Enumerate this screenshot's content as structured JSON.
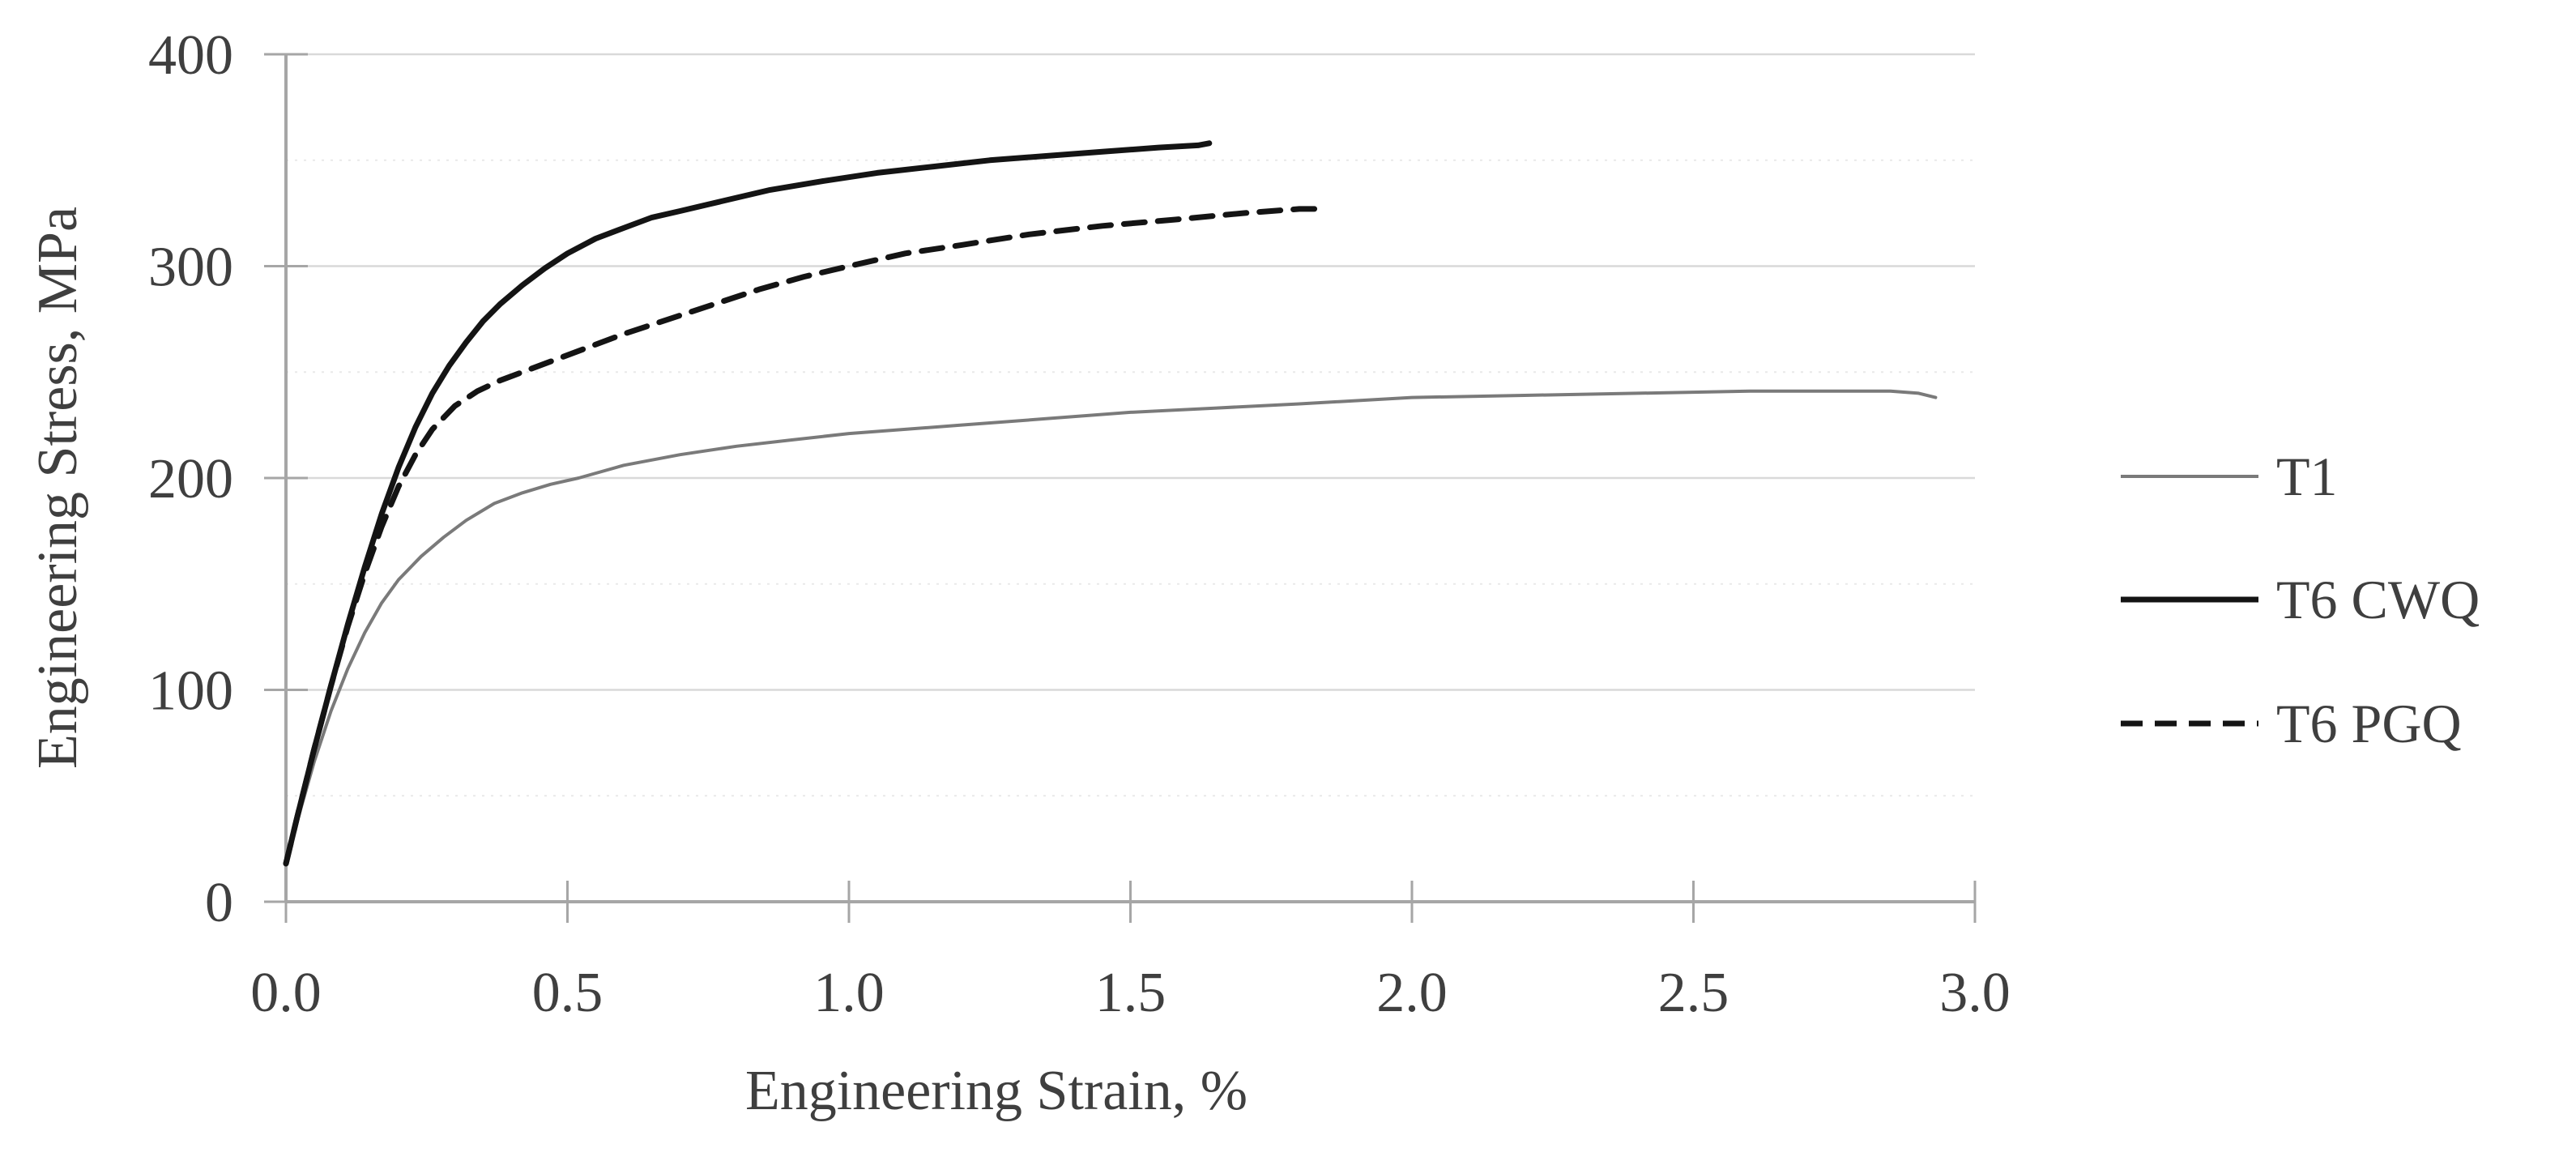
{
  "figure": {
    "background": "#ffffff",
    "text_color": "#3f3f3f",
    "axis_color": "#a6a6a6",
    "major_grid_color": "#d9d9d9",
    "minor_grid_color": "#e9e9e9"
  },
  "chart_data": {
    "type": "line",
    "title": "",
    "xlabel": "Engineering Strain, %",
    "ylabel": "Engineering Stress, MPa",
    "xlim": [
      0.0,
      3.0
    ],
    "ylim": [
      0,
      400
    ],
    "x_tick_labels": [
      "0.0",
      "0.5",
      "1.0",
      "1.5",
      "2.0",
      "2.5",
      "3.0"
    ],
    "x_tick_values": [
      0,
      0.5,
      1.0,
      1.5,
      2.0,
      2.5,
      3.0
    ],
    "y_tick_labels": [
      "0",
      "100",
      "200",
      "300",
      "400"
    ],
    "y_tick_values": [
      0,
      100,
      200,
      300,
      400
    ],
    "y_minor_tick_values": [
      50,
      150,
      250,
      350
    ],
    "grid": "horizontal, major solid + minor dotted",
    "legend_position": "right",
    "series": [
      {
        "name": "T1",
        "color": "#7a7a7a",
        "width": 4,
        "dash": "none",
        "points": [
          [
            0,
            18
          ],
          [
            0.02,
            38
          ],
          [
            0.05,
            66
          ],
          [
            0.08,
            90
          ],
          [
            0.11,
            110
          ],
          [
            0.14,
            127
          ],
          [
            0.17,
            141
          ],
          [
            0.2,
            152
          ],
          [
            0.24,
            163
          ],
          [
            0.28,
            172
          ],
          [
            0.32,
            180
          ],
          [
            0.37,
            188
          ],
          [
            0.42,
            193
          ],
          [
            0.47,
            197
          ],
          [
            0.52,
            200
          ],
          [
            0.6,
            206
          ],
          [
            0.7,
            211
          ],
          [
            0.8,
            215
          ],
          [
            0.9,
            218
          ],
          [
            1.0,
            221
          ],
          [
            1.1,
            223
          ],
          [
            1.2,
            225
          ],
          [
            1.35,
            228
          ],
          [
            1.5,
            231
          ],
          [
            1.65,
            233
          ],
          [
            1.8,
            235
          ],
          [
            2.0,
            238
          ],
          [
            2.2,
            239
          ],
          [
            2.4,
            240
          ],
          [
            2.6,
            241
          ],
          [
            2.75,
            241
          ],
          [
            2.85,
            241
          ],
          [
            2.9,
            240
          ],
          [
            2.93,
            238
          ]
        ]
      },
      {
        "name": "T6 CWQ",
        "color": "#141414",
        "width": 7,
        "dash": "none",
        "points": [
          [
            0,
            18
          ],
          [
            0.02,
            40
          ],
          [
            0.05,
            72
          ],
          [
            0.08,
            102
          ],
          [
            0.11,
            131
          ],
          [
            0.14,
            158
          ],
          [
            0.17,
            183
          ],
          [
            0.2,
            205
          ],
          [
            0.23,
            224
          ],
          [
            0.26,
            240
          ],
          [
            0.29,
            253
          ],
          [
            0.32,
            264
          ],
          [
            0.35,
            274
          ],
          [
            0.38,
            282
          ],
          [
            0.42,
            291
          ],
          [
            0.46,
            299
          ],
          [
            0.5,
            306
          ],
          [
            0.55,
            313
          ],
          [
            0.6,
            318
          ],
          [
            0.65,
            323
          ],
          [
            0.7,
            326
          ],
          [
            0.78,
            331
          ],
          [
            0.86,
            336
          ],
          [
            0.95,
            340
          ],
          [
            1.05,
            344
          ],
          [
            1.15,
            347
          ],
          [
            1.25,
            350
          ],
          [
            1.35,
            352
          ],
          [
            1.45,
            354
          ],
          [
            1.55,
            356
          ],
          [
            1.62,
            357
          ],
          [
            1.64,
            358
          ]
        ]
      },
      {
        "name": "T6 PGQ",
        "color": "#141414",
        "width": 7,
        "dash": "26 16",
        "points": [
          [
            0,
            18
          ],
          [
            0.02,
            40
          ],
          [
            0.05,
            72
          ],
          [
            0.08,
            102
          ],
          [
            0.11,
            130
          ],
          [
            0.14,
            155
          ],
          [
            0.17,
            177
          ],
          [
            0.2,
            196
          ],
          [
            0.23,
            211
          ],
          [
            0.26,
            223
          ],
          [
            0.3,
            234
          ],
          [
            0.34,
            241
          ],
          [
            0.38,
            246
          ],
          [
            0.43,
            251
          ],
          [
            0.48,
            256
          ],
          [
            0.54,
            262
          ],
          [
            0.6,
            268
          ],
          [
            0.68,
            275
          ],
          [
            0.76,
            282
          ],
          [
            0.84,
            289
          ],
          [
            0.92,
            295
          ],
          [
            1.0,
            300
          ],
          [
            1.1,
            306
          ],
          [
            1.2,
            310
          ],
          [
            1.32,
            315
          ],
          [
            1.45,
            319
          ],
          [
            1.58,
            322
          ],
          [
            1.7,
            325
          ],
          [
            1.8,
            327
          ],
          [
            1.84,
            327
          ]
        ]
      }
    ]
  },
  "legend": {
    "items": [
      {
        "label": "T1"
      },
      {
        "label": "T6 CWQ"
      },
      {
        "label": "T6 PGQ"
      }
    ]
  }
}
